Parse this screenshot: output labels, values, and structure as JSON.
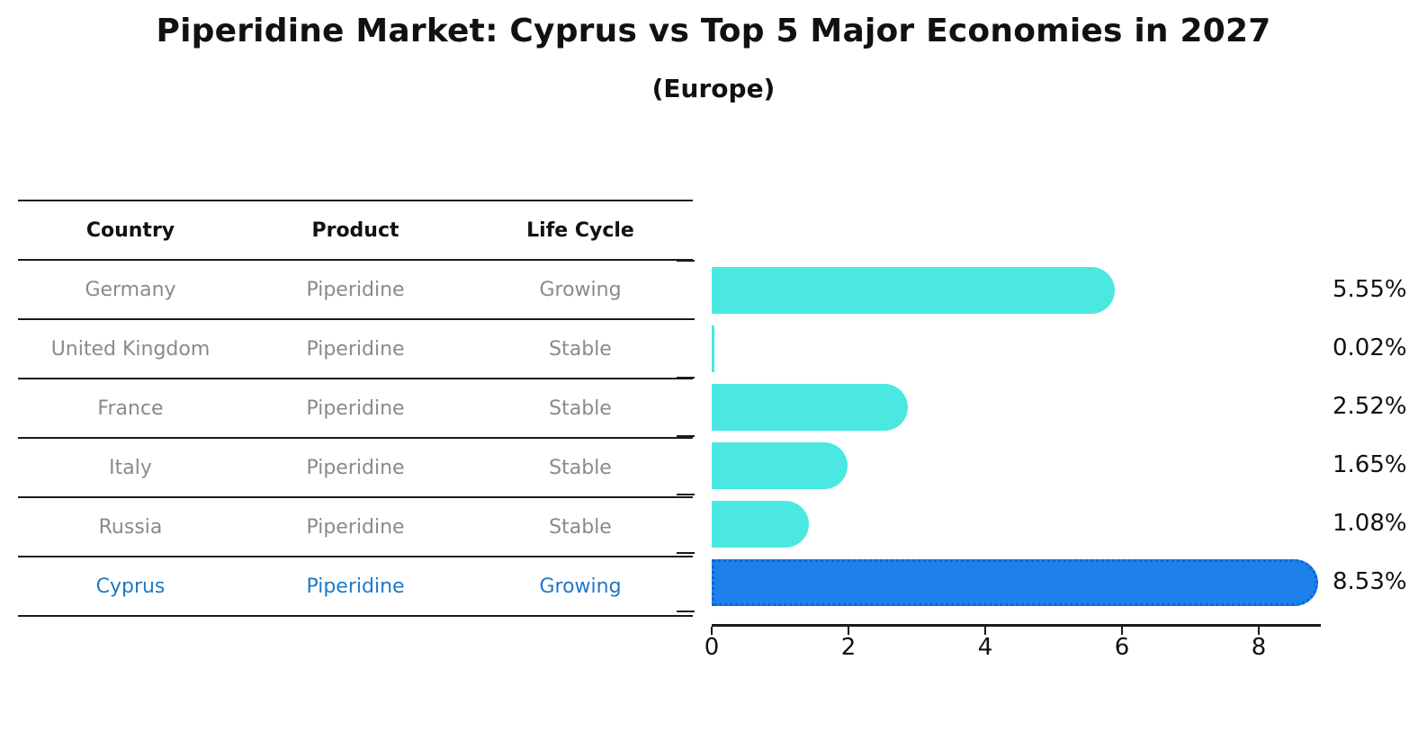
{
  "title": "Piperidine Market: Cyprus vs Top 5 Major Economies in 2027",
  "subtitle": "(Europe)",
  "table": {
    "headers": [
      "Country",
      "Product",
      "Life Cycle"
    ],
    "rows": [
      {
        "country": "Germany",
        "product": "Piperidine",
        "life_cycle": "Growing",
        "highlight": false
      },
      {
        "country": "United Kingdom",
        "product": "Piperidine",
        "life_cycle": "Stable",
        "highlight": false
      },
      {
        "country": "France",
        "product": "Piperidine",
        "life_cycle": "Stable",
        "highlight": false
      },
      {
        "country": "Italy",
        "product": "Piperidine",
        "life_cycle": "Stable",
        "highlight": false
      },
      {
        "country": "Russia",
        "product": "Piperidine",
        "life_cycle": "Stable",
        "highlight": false
      },
      {
        "country": "Cyprus",
        "product": "Piperidine",
        "life_cycle": "Growing",
        "highlight": true
      }
    ]
  },
  "chart_data": {
    "type": "bar",
    "orientation": "horizontal",
    "title": "Piperidine Market: Cyprus vs Top 5 Major Economies in 2027",
    "subtitle": "(Europe)",
    "categories": [
      "Germany",
      "United Kingdom",
      "France",
      "Italy",
      "Russia",
      "Cyprus"
    ],
    "values": [
      5.55,
      0.02,
      2.52,
      1.65,
      1.08,
      8.53
    ],
    "value_labels": [
      "5.55%",
      "0.02%",
      "2.52%",
      "1.65%",
      "1.08%",
      "8.53%"
    ],
    "x_ticks": [
      "0",
      "2",
      "4",
      "6",
      "8"
    ],
    "xlim": [
      0,
      8.9
    ],
    "grid": false,
    "legend": false,
    "bar_color": "#4AE8E1",
    "highlight_bar_color": "#1E80EB",
    "highlight_border_color": "#0C66D4",
    "highlight_index": 5
  },
  "colors": {
    "background": "#ffffff",
    "text": "#111111",
    "muted_text": "#8a8a8a",
    "highlight_text": "#1E78C8",
    "line": "#1a1a1a"
  }
}
